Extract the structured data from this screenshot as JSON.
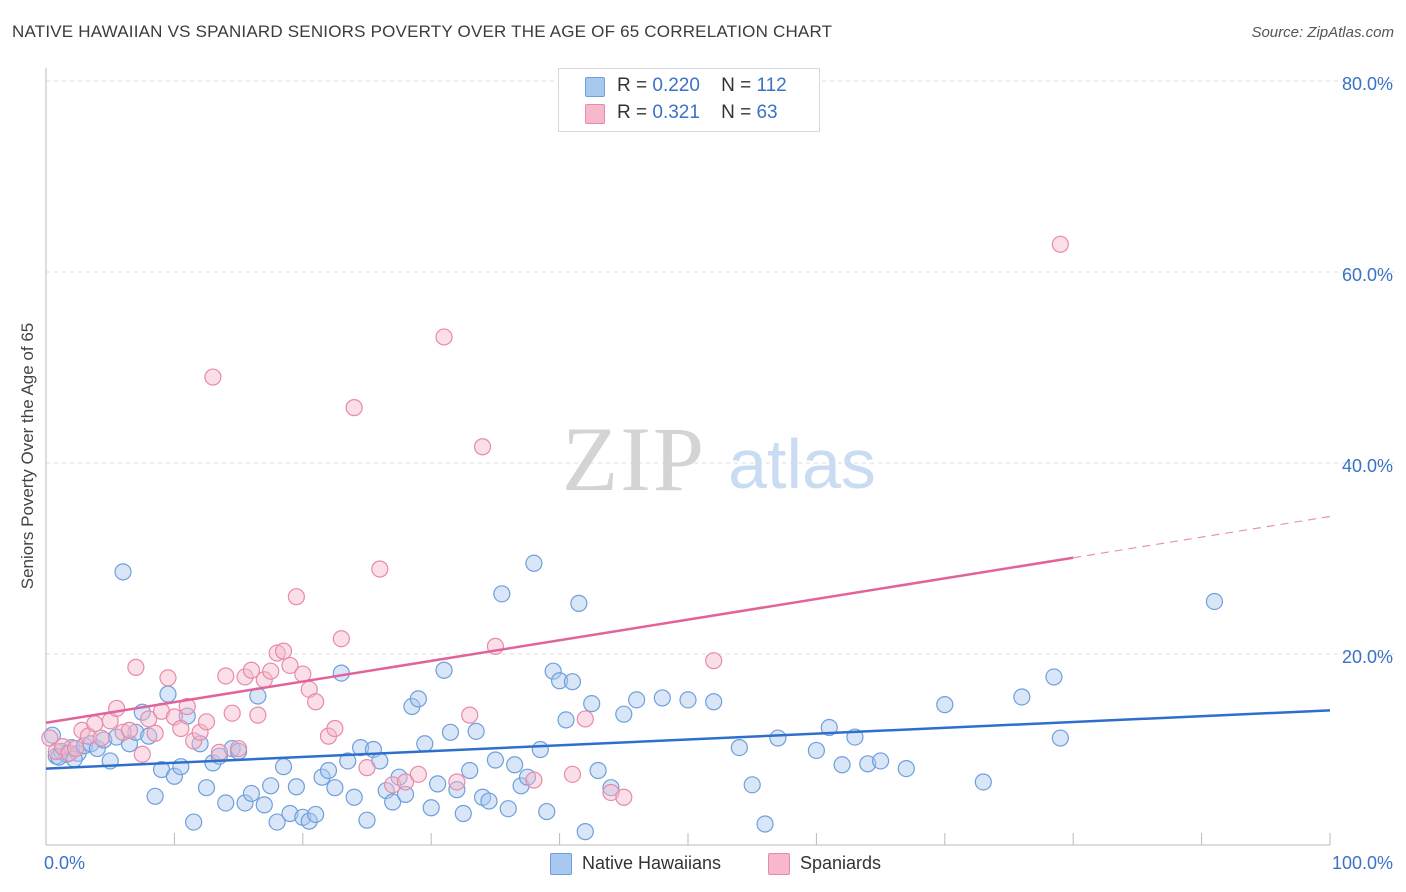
{
  "header": {
    "title": "NATIVE HAWAIIAN VS SPANIARD SENIORS POVERTY OVER THE AGE OF 65 CORRELATION CHART",
    "source": "Source: ZipAtlas.com"
  },
  "watermark": {
    "zip": "ZIP",
    "atlas": "atlas"
  },
  "legend": {
    "rows": [
      {
        "r_label": "R =",
        "r_value": "0.220",
        "n_label": "N =",
        "n_value": "112",
        "color": "#a8c8f0"
      },
      {
        "r_label": "R =",
        "r_value": "0.321",
        "n_label": "N =",
        "n_value": "63",
        "color": "#f5b8cc"
      }
    ]
  },
  "colors": {
    "blue_fill": "#a8c8f0",
    "blue_stroke": "#6f9fdc",
    "blue_line": "#2e6fcc",
    "pink_fill": "#f5b8cc",
    "pink_stroke": "#e88aa8",
    "pink_line": "#e0649a",
    "tick_label": "#3a72c6",
    "grid": "#dddddd"
  },
  "chart_data": {
    "type": "scatter",
    "title": "NATIVE HAWAIIAN VS SPANIARD SENIORS POVERTY OVER THE AGE OF 65 CORRELATION CHART",
    "xlabel": "",
    "ylabel": "Seniors Poverty Over the Age of 65",
    "xlim": [
      0,
      100
    ],
    "ylim": [
      0,
      83
    ],
    "x_tick_labels": [
      "0.0%",
      "100.0%"
    ],
    "y_ticks": [
      20,
      40,
      60,
      80
    ],
    "y_tick_labels": [
      "20.0%",
      "40.0%",
      "60.0%",
      "80.0%"
    ],
    "grid": true,
    "legend_position": "top-center",
    "series": [
      {
        "name": "Native Hawaiians",
        "color": "#a8c8f0",
        "trend": {
          "x": [
            0,
            100
          ],
          "y": [
            8.0,
            14.1
          ],
          "solid_to": 100
        },
        "points": [
          [
            0.5,
            11.5
          ],
          [
            0.8,
            9.3
          ],
          [
            1.2,
            9.8
          ],
          [
            1.6,
            9.5
          ],
          [
            2.0,
            10.2
          ],
          [
            2.5,
            9.6
          ],
          [
            3.0,
            10.4
          ],
          [
            3.5,
            10.6
          ],
          [
            4.0,
            10.1
          ],
          [
            4.5,
            11.0
          ],
          [
            5.0,
            8.8
          ],
          [
            5.5,
            11.3
          ],
          [
            6.0,
            28.6
          ],
          [
            6.5,
            10.6
          ],
          [
            7.0,
            11.8
          ],
          [
            7.5,
            13.9
          ],
          [
            8.0,
            11.4
          ],
          [
            8.5,
            5.1
          ],
          [
            9.0,
            7.9
          ],
          [
            9.5,
            15.8
          ],
          [
            10.0,
            7.2
          ],
          [
            10.5,
            8.2
          ],
          [
            11.0,
            13.5
          ],
          [
            11.5,
            2.4
          ],
          [
            12.0,
            10.6
          ],
          [
            12.5,
            6.0
          ],
          [
            13.0,
            8.6
          ],
          [
            13.5,
            9.3
          ],
          [
            14.0,
            4.4
          ],
          [
            14.5,
            10.1
          ],
          [
            15.0,
            9.8
          ],
          [
            15.5,
            4.4
          ],
          [
            16.0,
            5.4
          ],
          [
            16.5,
            15.6
          ],
          [
            17.0,
            4.2
          ],
          [
            17.5,
            6.2
          ],
          [
            18.0,
            2.4
          ],
          [
            18.5,
            8.2
          ],
          [
            19.0,
            3.3
          ],
          [
            19.5,
            6.1
          ],
          [
            20.0,
            2.9
          ],
          [
            20.5,
            2.5
          ],
          [
            21.0,
            3.2
          ],
          [
            21.5,
            7.1
          ],
          [
            22.0,
            7.8
          ],
          [
            22.5,
            6.0
          ],
          [
            23.0,
            18.0
          ],
          [
            23.5,
            8.8
          ],
          [
            24.0,
            5.0
          ],
          [
            24.5,
            10.2
          ],
          [
            25.0,
            2.6
          ],
          [
            25.5,
            10.0
          ],
          [
            26.0,
            8.8
          ],
          [
            26.5,
            5.7
          ],
          [
            27.0,
            4.5
          ],
          [
            27.5,
            7.1
          ],
          [
            28.0,
            5.3
          ],
          [
            28.5,
            14.5
          ],
          [
            29.0,
            15.3
          ],
          [
            29.5,
            10.6
          ],
          [
            30.0,
            3.9
          ],
          [
            30.5,
            6.4
          ],
          [
            31.0,
            18.3
          ],
          [
            31.5,
            11.8
          ],
          [
            32.0,
            5.8
          ],
          [
            32.5,
            3.3
          ],
          [
            33.0,
            7.8
          ],
          [
            33.5,
            11.9
          ],
          [
            34.0,
            5.0
          ],
          [
            34.5,
            4.6
          ],
          [
            35.0,
            8.9
          ],
          [
            35.5,
            26.3
          ],
          [
            36.0,
            3.8
          ],
          [
            36.5,
            8.4
          ],
          [
            37.0,
            6.2
          ],
          [
            37.5,
            7.1
          ],
          [
            38.0,
            29.5
          ],
          [
            38.5,
            10.0
          ],
          [
            39.0,
            3.5
          ],
          [
            39.5,
            18.2
          ],
          [
            40.0,
            17.2
          ],
          [
            40.5,
            13.1
          ],
          [
            41.0,
            17.1
          ],
          [
            41.5,
            25.3
          ],
          [
            42.0,
            1.4
          ],
          [
            42.5,
            14.8
          ],
          [
            43.0,
            7.8
          ],
          [
            44.0,
            6.0
          ],
          [
            45.0,
            13.7
          ],
          [
            46.0,
            15.2
          ],
          [
            48.0,
            15.4
          ],
          [
            50.0,
            15.2
          ],
          [
            52.0,
            15.0
          ],
          [
            54.0,
            10.2
          ],
          [
            55.0,
            6.3
          ],
          [
            56.0,
            2.2
          ],
          [
            57.0,
            11.2
          ],
          [
            60.0,
            9.9
          ],
          [
            61.0,
            12.3
          ],
          [
            62.0,
            8.4
          ],
          [
            63.0,
            11.3
          ],
          [
            64.0,
            8.5
          ],
          [
            65.0,
            8.8
          ],
          [
            67.0,
            8.0
          ],
          [
            70.0,
            14.7
          ],
          [
            73.0,
            6.6
          ],
          [
            76.0,
            15.5
          ],
          [
            78.5,
            17.6
          ],
          [
            79.0,
            11.2
          ],
          [
            91.0,
            25.5
          ],
          [
            1.0,
            9.2
          ],
          [
            2.2,
            9.0
          ]
        ]
      },
      {
        "name": "Spaniards",
        "color": "#f5b8cc",
        "trend": {
          "x": [
            0,
            100
          ],
          "y": [
            12.8,
            34.4
          ],
          "solid_to": 80
        },
        "points": [
          [
            0.3,
            11.2
          ],
          [
            0.8,
            9.8
          ],
          [
            1.3,
            10.3
          ],
          [
            1.8,
            9.6
          ],
          [
            2.3,
            10.1
          ],
          [
            2.8,
            12.0
          ],
          [
            3.3,
            11.4
          ],
          [
            3.8,
            12.7
          ],
          [
            4.3,
            11.2
          ],
          [
            5.0,
            13.0
          ],
          [
            5.5,
            14.3
          ],
          [
            6.0,
            11.8
          ],
          [
            6.5,
            12.0
          ],
          [
            7.0,
            18.6
          ],
          [
            7.5,
            9.5
          ],
          [
            8.0,
            13.2
          ],
          [
            8.5,
            11.7
          ],
          [
            9.0,
            14.0
          ],
          [
            9.5,
            17.5
          ],
          [
            10.0,
            13.4
          ],
          [
            10.5,
            12.2
          ],
          [
            11.0,
            14.5
          ],
          [
            11.5,
            10.9
          ],
          [
            12.0,
            11.8
          ],
          [
            12.5,
            12.9
          ],
          [
            13.0,
            49.0
          ],
          [
            13.5,
            9.7
          ],
          [
            14.0,
            17.7
          ],
          [
            14.5,
            13.8
          ],
          [
            15.0,
            10.1
          ],
          [
            15.5,
            17.6
          ],
          [
            16.0,
            18.3
          ],
          [
            16.5,
            13.6
          ],
          [
            17.0,
            17.3
          ],
          [
            17.5,
            18.2
          ],
          [
            18.0,
            20.1
          ],
          [
            18.5,
            20.3
          ],
          [
            19.0,
            18.8
          ],
          [
            19.5,
            26.0
          ],
          [
            20.0,
            17.9
          ],
          [
            20.5,
            16.3
          ],
          [
            21.0,
            15.0
          ],
          [
            22.0,
            11.4
          ],
          [
            22.5,
            12.2
          ],
          [
            23.0,
            21.6
          ],
          [
            24.0,
            45.8
          ],
          [
            25.0,
            8.1
          ],
          [
            26.0,
            28.9
          ],
          [
            27.0,
            6.3
          ],
          [
            28.0,
            6.6
          ],
          [
            29.0,
            7.4
          ],
          [
            31.0,
            53.2
          ],
          [
            32.0,
            6.6
          ],
          [
            33.0,
            13.6
          ],
          [
            34.0,
            41.7
          ],
          [
            35.0,
            20.8
          ],
          [
            38.0,
            6.8
          ],
          [
            41.0,
            7.4
          ],
          [
            42.0,
            13.2
          ],
          [
            44.0,
            5.5
          ],
          [
            45.0,
            5.0
          ],
          [
            52.0,
            19.3
          ],
          [
            79.0,
            62.9
          ]
        ]
      }
    ]
  }
}
